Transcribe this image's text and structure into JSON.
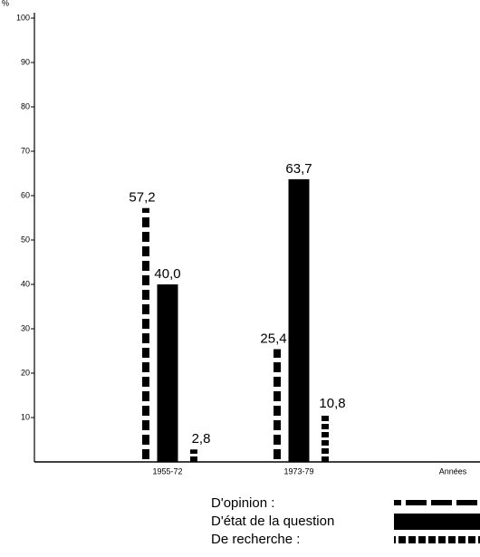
{
  "chart_data": {
    "type": "bar",
    "ylabel": "%",
    "xlabel": "Années",
    "categories": [
      "1955-72",
      "1973-79"
    ],
    "series": [
      {
        "name": "D'opinion :",
        "color": "#000000",
        "pattern": "dashed",
        "values": [
          57.2,
          25.4
        ],
        "value_labels": [
          "57,2",
          "25,4"
        ]
      },
      {
        "name": "D'état de la question",
        "color": "#000000",
        "pattern": "solid",
        "values": [
          40.0,
          63.7
        ],
        "value_labels": [
          "40,0",
          "63,7"
        ]
      },
      {
        "name": "De recherche :",
        "color": "#000000",
        "pattern": "dotted",
        "values": [
          2.8,
          10.8
        ],
        "value_labels": [
          "2,8",
          "10,8"
        ]
      }
    ],
    "ylim": [
      0,
      100
    ],
    "yticks": [
      10,
      20,
      30,
      40,
      50,
      60,
      70,
      80,
      90,
      100
    ],
    "grid": false
  }
}
